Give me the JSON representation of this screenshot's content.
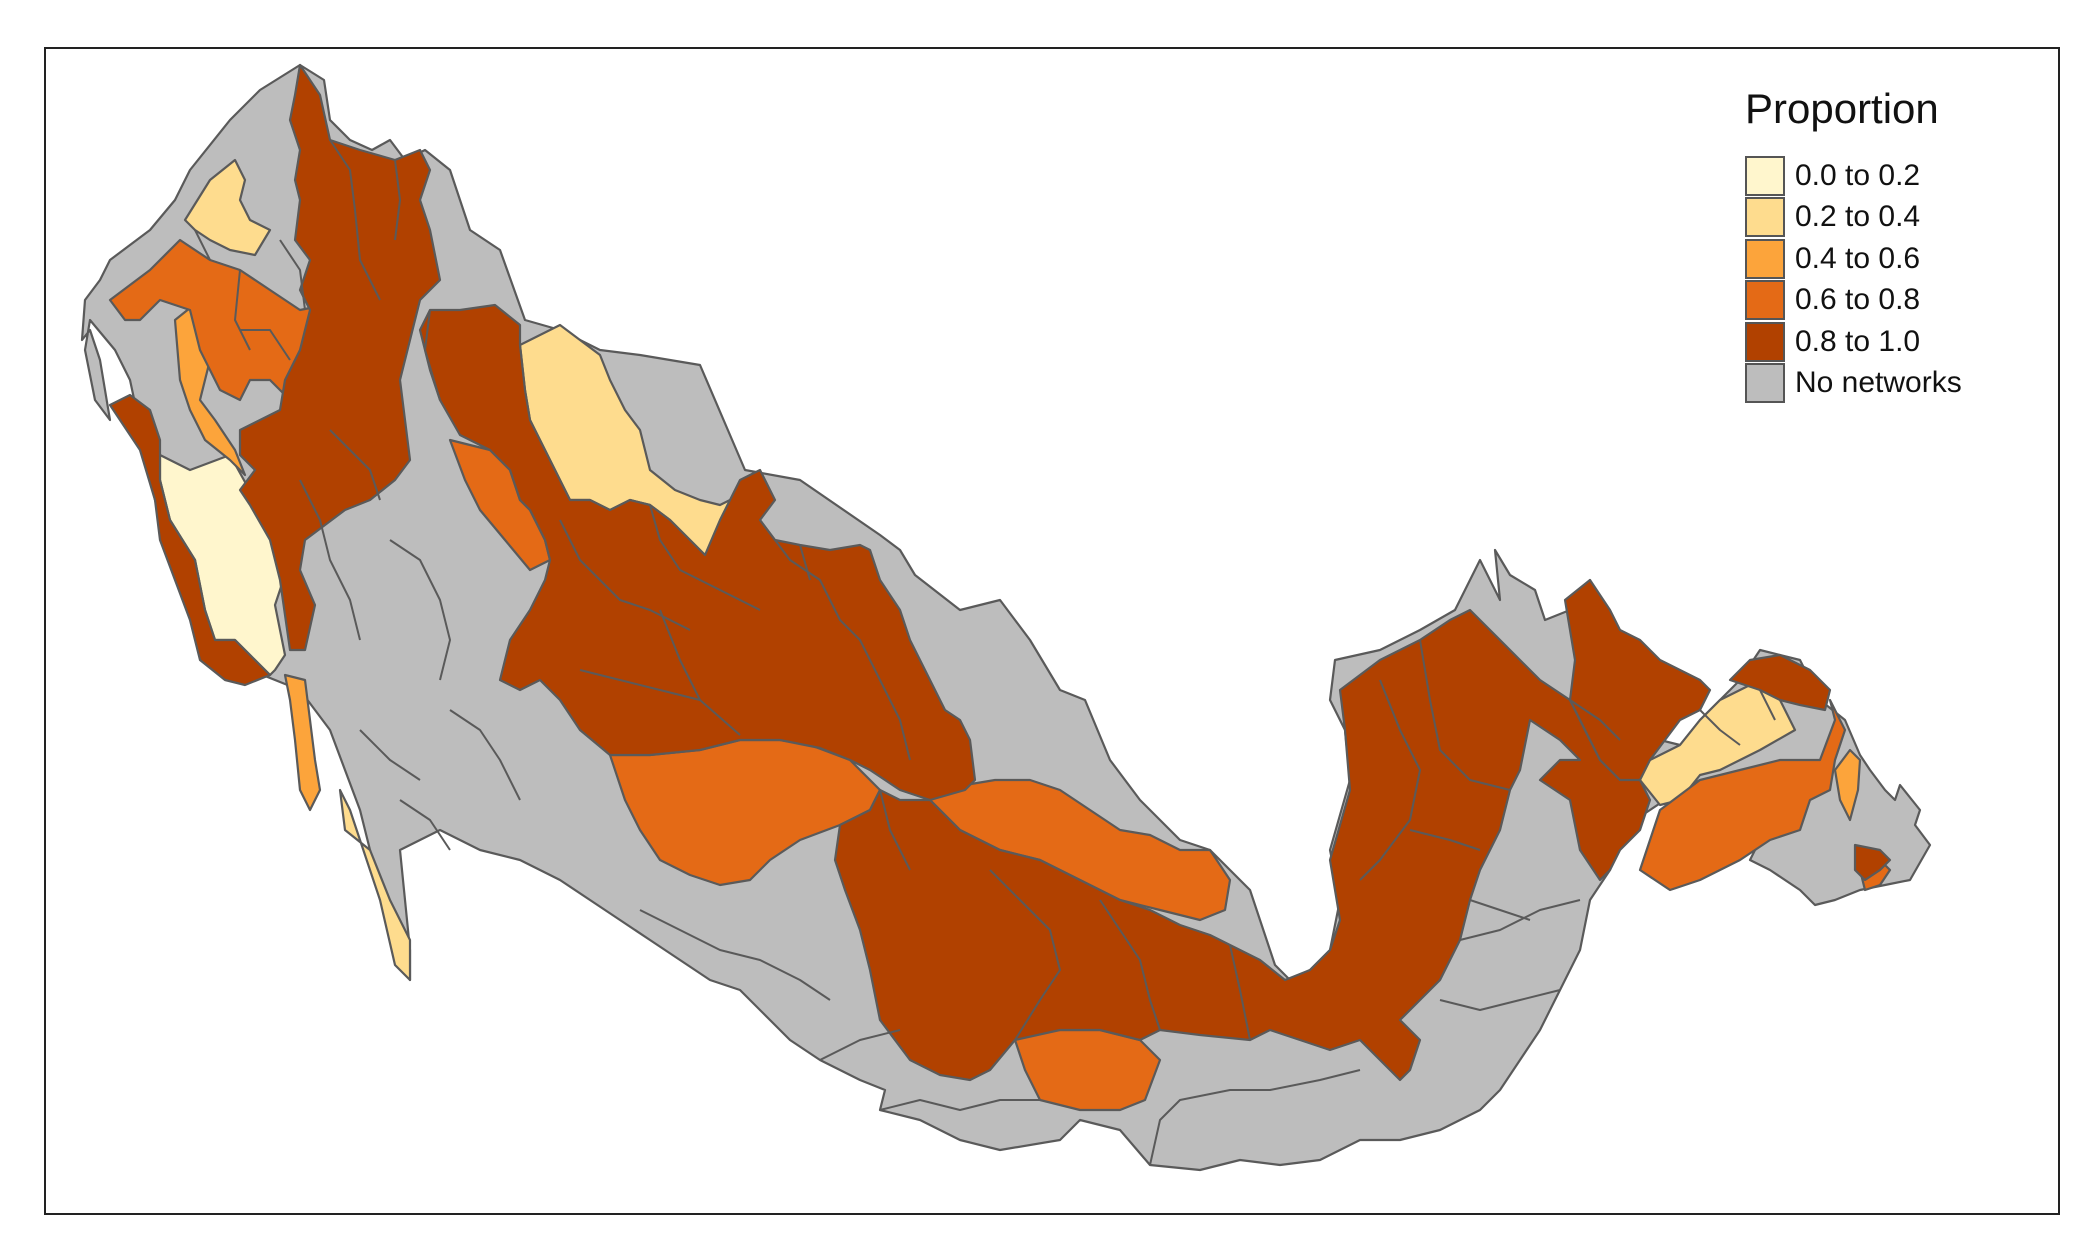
{
  "legend": {
    "title": "Proportion",
    "items": [
      {
        "label": "0.0 to 0.2",
        "color": "#fff6cd"
      },
      {
        "label": "0.2 to 0.4",
        "color": "#fedc8e"
      },
      {
        "label": "0.4 to 0.6",
        "color": "#fca43b"
      },
      {
        "label": "0.6 to 0.8",
        "color": "#e46a16"
      },
      {
        "label": "0.8 to 1.0",
        "color": "#b14100"
      },
      {
        "label": "No networks",
        "color": "#bdbdbd"
      }
    ]
  },
  "colors": {
    "no_networks": "#bdbdbd",
    "boundary": "#5a5a5a",
    "frame": "#222222"
  }
}
